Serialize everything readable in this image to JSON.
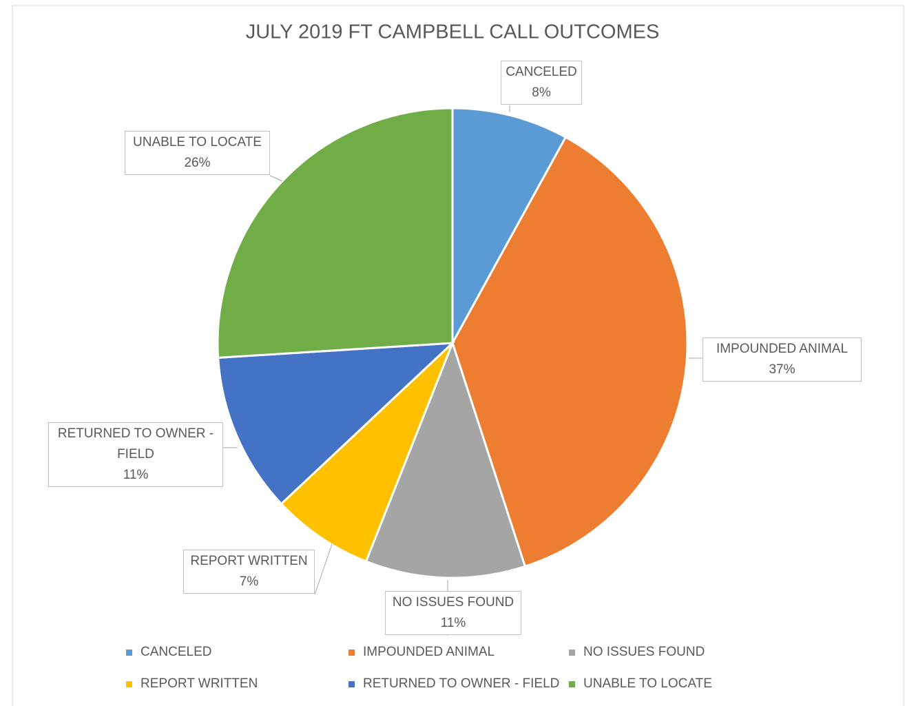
{
  "chart_data": {
    "type": "pie",
    "title": "JULY 2019 FT CAMPBELL CALL OUTCOMES",
    "categories": [
      "CANCELED",
      "IMPOUNDED ANIMAL",
      "NO ISSUES FOUND",
      "REPORT WRITTEN",
      "RETURNED TO OWNER - FIELD",
      "UNABLE TO LOCATE"
    ],
    "values": [
      8,
      37,
      11,
      7,
      11,
      26
    ],
    "value_labels": [
      "8%",
      "37%",
      "11%",
      "7%",
      "11%",
      "26%"
    ],
    "colors": [
      "#5b9bd5",
      "#ed7d31",
      "#a5a5a5",
      "#ffc000",
      "#4472c4",
      "#70ad47"
    ],
    "legend": "bottom"
  }
}
